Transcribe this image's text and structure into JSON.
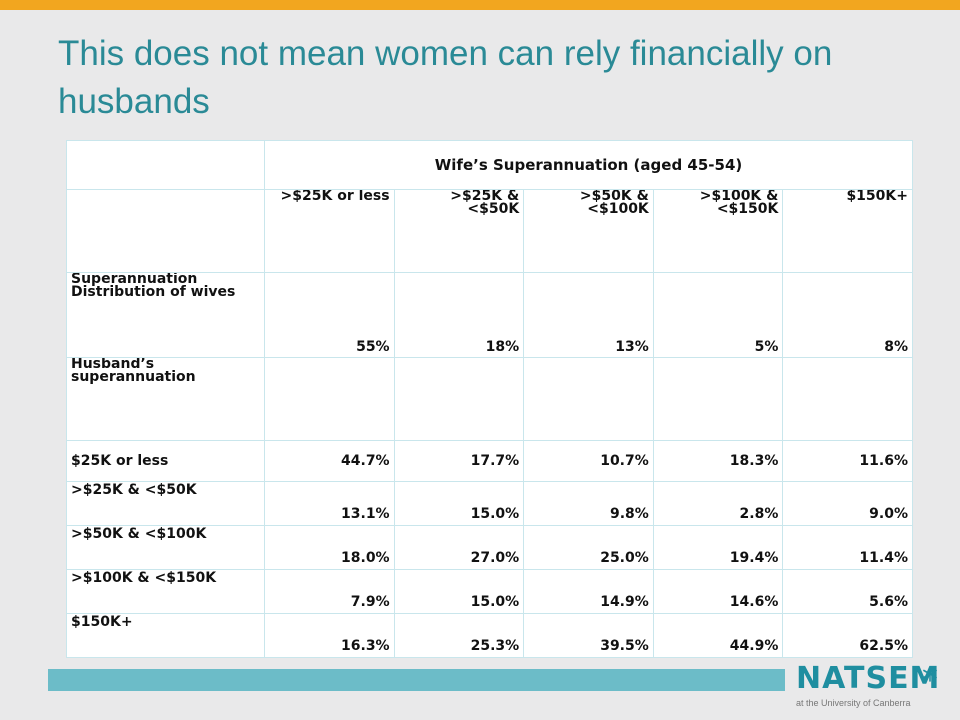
{
  "title": "This does not mean women can rely financially on husbands",
  "table": {
    "group_header": "Wife’s Superannuation  (aged 45-54)",
    "columns": [
      ">$25K or less",
      ">$25K & <$50K",
      ">$50K & <$100K",
      ">$100K & <$150K",
      "$150K+"
    ],
    "wives_label": "Superannuation Distribution  of wives",
    "wives_values": [
      "55%",
      "18%",
      "13%",
      "5%",
      "8%"
    ],
    "husband_label": "Husband’s superannuation",
    "rows": [
      {
        "label": "$25K or less",
        "values": [
          "44.7%",
          "17.7%",
          "10.7%",
          "18.3%",
          "11.6%"
        ]
      },
      {
        "label": ">$25K & <$50K",
        "values": [
          "13.1%",
          "15.0%",
          "9.8%",
          "2.8%",
          "9.0%"
        ]
      },
      {
        "label": ">$50K & <$100K",
        "values": [
          "18.0%",
          "27.0%",
          "25.0%",
          "19.4%",
          "11.4%"
        ]
      },
      {
        "label": ">$100K & <$150K",
        "values": [
          "7.9%",
          "15.0%",
          "14.9%",
          "14.6%",
          "5.6%"
        ]
      },
      {
        "label": "$150K+",
        "values": [
          "16.3%",
          "25.3%",
          "39.5%",
          "44.9%",
          "62.5%"
        ]
      }
    ]
  },
  "logo": {
    "word": "NATSEM",
    "subtitle": "at the University of Canberra"
  },
  "colors": {
    "accent_orange": "#f2a61f",
    "title_teal": "#2a8a96",
    "bar_teal": "#6cbcc8",
    "grid_line": "#c9e6ec"
  }
}
